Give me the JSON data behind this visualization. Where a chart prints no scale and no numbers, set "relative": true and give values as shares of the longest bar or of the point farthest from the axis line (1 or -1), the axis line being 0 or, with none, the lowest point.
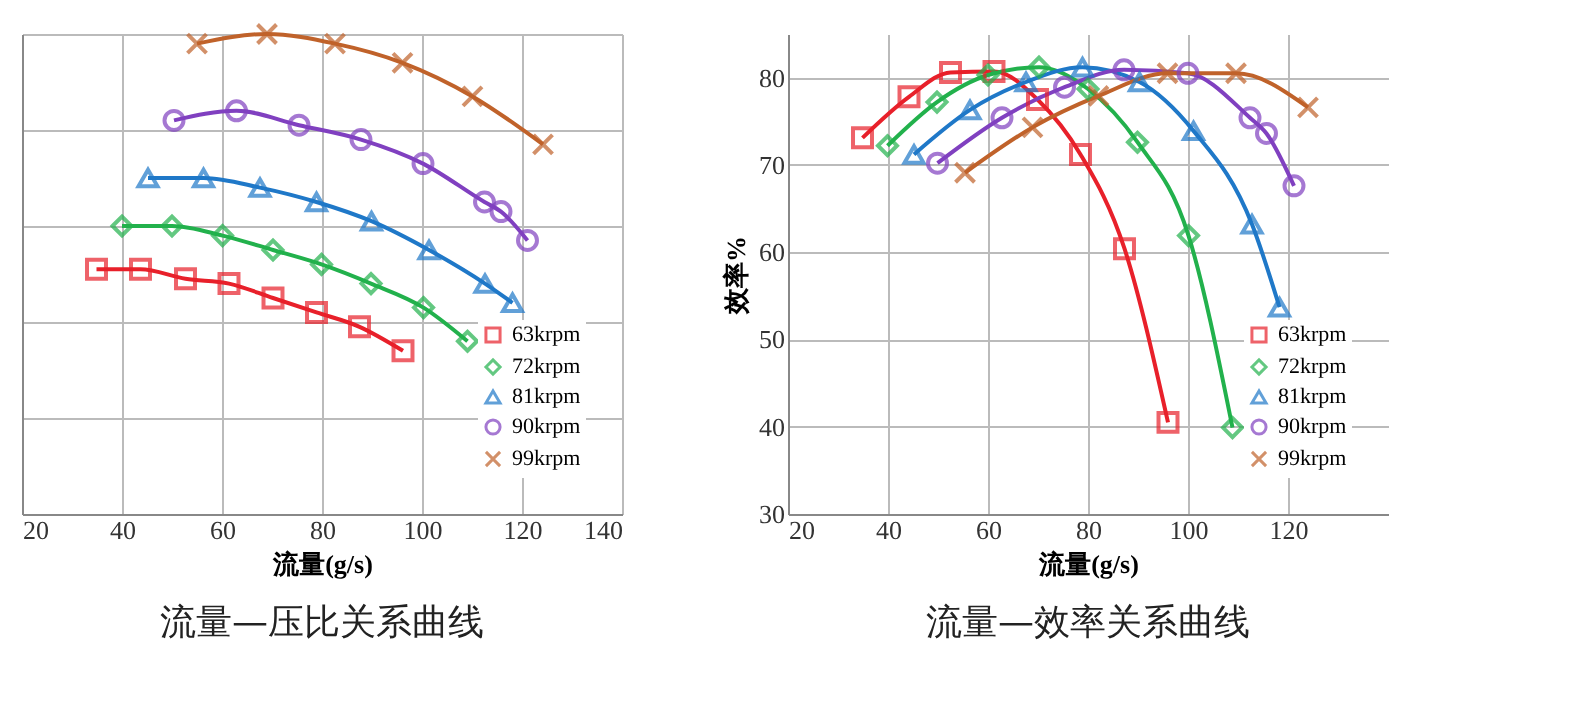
{
  "chart_data": [
    {
      "type": "line",
      "title": "流量—压比关系曲线",
      "xlabel": "流量(g/s)",
      "relative": true,
      "xlim": [
        20,
        140
      ],
      "xticks": [
        20,
        40,
        60,
        80,
        100,
        120,
        140
      ],
      "grid": true,
      "legend": "bottom right",
      "series": [
        {
          "name": "63krpm",
          "color": "#e8202a",
          "marker": "square",
          "x": [
            34.9,
            43.7,
            52.7,
            61.4,
            70.2,
            78.9,
            87.5,
            96.2
          ],
          "values": [
            0.51,
            0.51,
            0.49,
            0.48,
            0.45,
            0.42,
            0.39,
            0.34
          ]
        },
        {
          "name": "72krpm",
          "color": "#22b14c",
          "marker": "diamond",
          "x": [
            40,
            50,
            60.1,
            70.2,
            79.9,
            89.8,
            100.3,
            109.1
          ],
          "values": [
            0.6,
            0.6,
            0.58,
            0.55,
            0.52,
            0.48,
            0.43,
            0.36
          ]
        },
        {
          "name": "81krpm",
          "color": "#1f78c8",
          "marker": "triangle",
          "x": [
            45.2,
            56.3,
            67.6,
            78.9,
            89.9,
            101.4,
            112.6,
            118.1
          ],
          "values": [
            0.7,
            0.7,
            0.68,
            0.65,
            0.61,
            0.55,
            0.48,
            0.44
          ]
        },
        {
          "name": "90krpm",
          "color": "#8040c0",
          "marker": "circle",
          "x": [
            50.4,
            62.9,
            75.4,
            87.8,
            100.2,
            112.5,
            115.8,
            121.1
          ],
          "values": [
            0.82,
            0.84,
            0.81,
            0.78,
            0.73,
            0.65,
            0.63,
            0.57
          ]
        },
        {
          "name": "99krpm",
          "color": "#c0622a",
          "marker": "cross",
          "x": [
            55,
            69,
            82.6,
            96.1,
            110.1,
            124.2
          ],
          "values": [
            0.98,
            1,
            0.98,
            0.94,
            0.87,
            0.77
          ]
        }
      ]
    },
    {
      "type": "line",
      "title": "流量—效率关系曲线",
      "xlabel": "流量(g/s)",
      "ylabel": "效率%",
      "xlim": [
        20,
        140
      ],
      "xticks": [
        20,
        40,
        60,
        80,
        100,
        120
      ],
      "ylim": [
        30,
        85
      ],
      "yticks": [
        30,
        40,
        50,
        60,
        70,
        80
      ],
      "grid": true,
      "legend": "bottom right",
      "series": [
        {
          "name": "63krpm",
          "color": "#e8202a",
          "marker": "square",
          "x": [
            34.9,
            44.2,
            52.5,
            61.2,
            69.9,
            78.5,
            87.3,
            96
          ],
          "values": [
            73.1,
            77.8,
            80.6,
            80.7,
            77.5,
            71.2,
            60.4,
            40.5
          ]
        },
        {
          "name": "72krpm",
          "color": "#22b14c",
          "marker": "diamond",
          "x": [
            39.9,
            49.8,
            60,
            70.2,
            80,
            89.9,
            100.1,
            108.9
          ],
          "values": [
            72.2,
            77.2,
            80.3,
            81.2,
            78.7,
            72.6,
            61.9,
            39.9
          ]
        },
        {
          "name": "81krpm",
          "color": "#1f78c8",
          "marker": "triangle",
          "x": [
            45.2,
            56.4,
            67.6,
            78.9,
            90.3,
            101.1,
            112.8,
            118.3
          ],
          "values": [
            71.2,
            76.3,
            79.5,
            81.2,
            79.5,
            73.9,
            63.2,
            53.7
          ]
        },
        {
          "name": "90krpm",
          "color": "#8040c0",
          "marker": "circle",
          "x": [
            49.9,
            62.8,
            75.3,
            87.2,
            100,
            112.4,
            115.7,
            121.2
          ],
          "values": [
            70.2,
            75.4,
            78.9,
            80.9,
            80.5,
            75.4,
            73.6,
            67.6
          ]
        },
        {
          "name": "99krpm",
          "color": "#c0622a",
          "marker": "cross",
          "x": [
            55.4,
            68.9,
            82.1,
            95.9,
            109.6,
            124
          ],
          "values": [
            69.1,
            74.3,
            77.9,
            80.5,
            80.5,
            76.6
          ]
        }
      ]
    }
  ]
}
